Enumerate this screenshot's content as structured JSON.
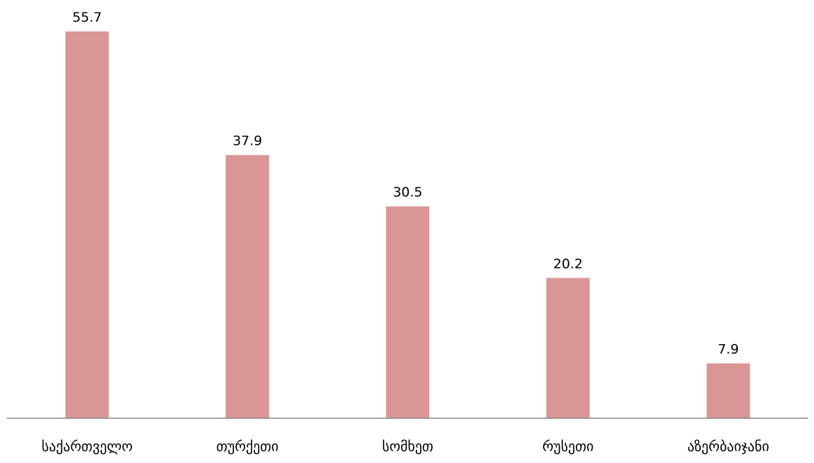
{
  "chart_data": {
    "type": "bar",
    "title": "",
    "xlabel": "",
    "ylabel": "",
    "categories": [
      "საქართველო",
      "თურქეთი",
      "სომხეთ",
      "რუსეთი",
      "აზერბაიჯანი"
    ],
    "values": [
      55.7,
      37.9,
      30.5,
      20.2,
      7.9
    ],
    "value_labels": [
      "55.7",
      "37.9",
      "30.5",
      "20.2",
      "7.9"
    ],
    "ylim": [
      0,
      60
    ],
    "grid": false,
    "legend": "none",
    "colors": {
      "bar": "#d99694",
      "axis": "#868686",
      "text": "#000000"
    }
  }
}
